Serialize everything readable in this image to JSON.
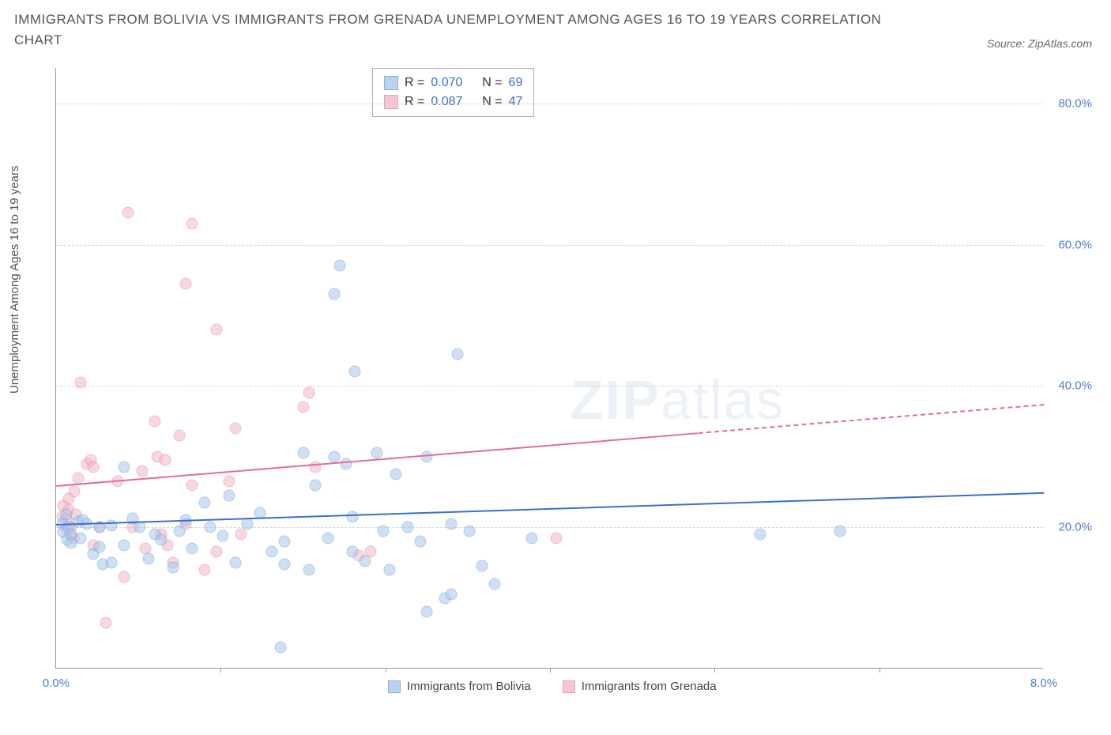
{
  "header": {
    "title": "IMMIGRANTS FROM BOLIVIA VS IMMIGRANTS FROM GRENADA UNEMPLOYMENT AMONG AGES 16 TO 19 YEARS CORRELATION CHART",
    "source_label": "Source: ZipAtlas.com"
  },
  "axes": {
    "y_label": "Unemployment Among Ages 16 to 19 years",
    "x_min": 0.0,
    "x_max": 8.0,
    "y_min": 0.0,
    "y_max": 85.0,
    "x_ticks": [
      0.0,
      8.0
    ],
    "x_tick_labels": [
      "0.0%",
      "8.0%"
    ],
    "x_minor_ticks": [
      1.33,
      2.67,
      4.0,
      5.33,
      6.67
    ],
    "y_ticks": [
      20.0,
      40.0,
      60.0,
      80.0
    ],
    "y_tick_labels": [
      "20.0%",
      "40.0%",
      "60.0%",
      "80.0%"
    ]
  },
  "series": {
    "bolivia": {
      "label": "Immigrants from Bolivia",
      "fill_color": "#a8c7ea",
      "fill_opacity": 0.55,
      "stroke_color": "#6f9fd6",
      "marker_size": 15,
      "stats": {
        "R": "0.070",
        "N": "69"
      },
      "trend": {
        "x1": 0.0,
        "y1": 20.5,
        "x2": 8.0,
        "y2": 25.0,
        "color": "#3a6fd0",
        "dash_after_x": null
      },
      "points": [
        [
          0.05,
          20.5
        ],
        [
          0.06,
          19.3
        ],
        [
          0.08,
          21.8
        ],
        [
          0.09,
          18.2
        ],
        [
          0.1,
          20.0
        ],
        [
          0.12,
          19.0
        ],
        [
          0.12,
          17.8
        ],
        [
          0.18,
          20.8
        ],
        [
          0.2,
          18.5
        ],
        [
          0.22,
          21.0
        ],
        [
          0.25,
          20.5
        ],
        [
          0.3,
          16.2
        ],
        [
          0.35,
          20.0
        ],
        [
          0.35,
          17.2
        ],
        [
          0.38,
          14.8
        ],
        [
          0.45,
          15.0
        ],
        [
          0.45,
          20.2
        ],
        [
          0.55,
          28.5
        ],
        [
          0.55,
          17.5
        ],
        [
          0.62,
          21.3
        ],
        [
          0.68,
          20.0
        ],
        [
          0.75,
          15.5
        ],
        [
          0.8,
          19.0
        ],
        [
          0.85,
          18.2
        ],
        [
          0.95,
          14.3
        ],
        [
          1.0,
          19.5
        ],
        [
          1.05,
          21.0
        ],
        [
          1.1,
          17.0
        ],
        [
          1.2,
          23.5
        ],
        [
          1.25,
          20.0
        ],
        [
          1.35,
          18.8
        ],
        [
          1.4,
          24.5
        ],
        [
          1.45,
          15.0
        ],
        [
          1.55,
          20.5
        ],
        [
          1.65,
          22.0
        ],
        [
          1.75,
          16.5
        ],
        [
          1.82,
          3.0
        ],
        [
          1.85,
          18.0
        ],
        [
          1.85,
          14.8
        ],
        [
          2.0,
          30.5
        ],
        [
          2.05,
          14.0
        ],
        [
          2.1,
          26.0
        ],
        [
          2.2,
          18.5
        ],
        [
          2.25,
          30.0
        ],
        [
          2.3,
          57.0
        ],
        [
          2.25,
          53.0
        ],
        [
          2.35,
          29.0
        ],
        [
          2.4,
          21.5
        ],
        [
          2.4,
          16.5
        ],
        [
          2.5,
          15.2
        ],
        [
          2.6,
          30.5
        ],
        [
          2.65,
          19.5
        ],
        [
          2.7,
          14.0
        ],
        [
          2.75,
          27.5
        ],
        [
          2.85,
          20.0
        ],
        [
          2.95,
          18.0
        ],
        [
          3.0,
          30.0
        ],
        [
          3.0,
          8.0
        ],
        [
          3.15,
          10.0
        ],
        [
          3.2,
          20.5
        ],
        [
          3.2,
          10.5
        ],
        [
          3.25,
          44.5
        ],
        [
          3.35,
          19.5
        ],
        [
          3.45,
          14.5
        ],
        [
          3.55,
          12.0
        ],
        [
          3.85,
          18.5
        ],
        [
          5.7,
          19.0
        ],
        [
          6.35,
          19.5
        ],
        [
          2.42,
          42.0
        ]
      ]
    },
    "grenada": {
      "label": "Immigrants from Grenada",
      "fill_color": "#f2b7c7",
      "fill_opacity": 0.55,
      "stroke_color": "#e08aa5",
      "marker_size": 15,
      "stats": {
        "R": "0.087",
        "N": "47"
      },
      "trend": {
        "x1": 0.0,
        "y1": 26.0,
        "x2": 8.0,
        "y2": 37.5,
        "color": "#e56b94",
        "dash_after_x": 5.2
      },
      "points": [
        [
          0.05,
          21.5
        ],
        [
          0.06,
          23.0
        ],
        [
          0.08,
          21.3
        ],
        [
          0.08,
          19.8
        ],
        [
          0.1,
          22.5
        ],
        [
          0.1,
          24.0
        ],
        [
          0.12,
          20.0
        ],
        [
          0.14,
          18.5
        ],
        [
          0.15,
          25.0
        ],
        [
          0.16,
          21.8
        ],
        [
          0.18,
          27.0
        ],
        [
          0.2,
          40.5
        ],
        [
          0.25,
          29.0
        ],
        [
          0.28,
          29.5
        ],
        [
          0.3,
          28.5
        ],
        [
          0.3,
          17.5
        ],
        [
          0.35,
          20.0
        ],
        [
          0.4,
          6.5
        ],
        [
          0.5,
          26.5
        ],
        [
          0.55,
          13.0
        ],
        [
          0.58,
          64.5
        ],
        [
          0.62,
          20.0
        ],
        [
          0.7,
          28.0
        ],
        [
          0.72,
          17.0
        ],
        [
          0.8,
          35.0
        ],
        [
          0.82,
          30.0
        ],
        [
          0.85,
          19.0
        ],
        [
          0.88,
          29.5
        ],
        [
          0.9,
          17.5
        ],
        [
          0.95,
          15.0
        ],
        [
          1.0,
          33.0
        ],
        [
          1.05,
          20.5
        ],
        [
          1.05,
          54.5
        ],
        [
          1.1,
          63.0
        ],
        [
          1.1,
          26.0
        ],
        [
          1.2,
          14.0
        ],
        [
          1.3,
          16.5
        ],
        [
          1.3,
          48.0
        ],
        [
          1.4,
          26.5
        ],
        [
          1.45,
          34.0
        ],
        [
          1.5,
          19.0
        ],
        [
          2.0,
          37.0
        ],
        [
          2.05,
          39.0
        ],
        [
          2.1,
          28.5
        ],
        [
          2.45,
          16.0
        ],
        [
          2.55,
          16.5
        ],
        [
          4.05,
          18.5
        ]
      ]
    }
  },
  "legend_top": {
    "r_label": "R =",
    "n_label": "N ="
  },
  "watermark": {
    "part1": "ZIP",
    "part2": "atlas"
  },
  "colors": {
    "axis": "#999999",
    "grid": "#d5d5d5",
    "tick_text": "#4a7fc9",
    "title_text": "#555555"
  }
}
